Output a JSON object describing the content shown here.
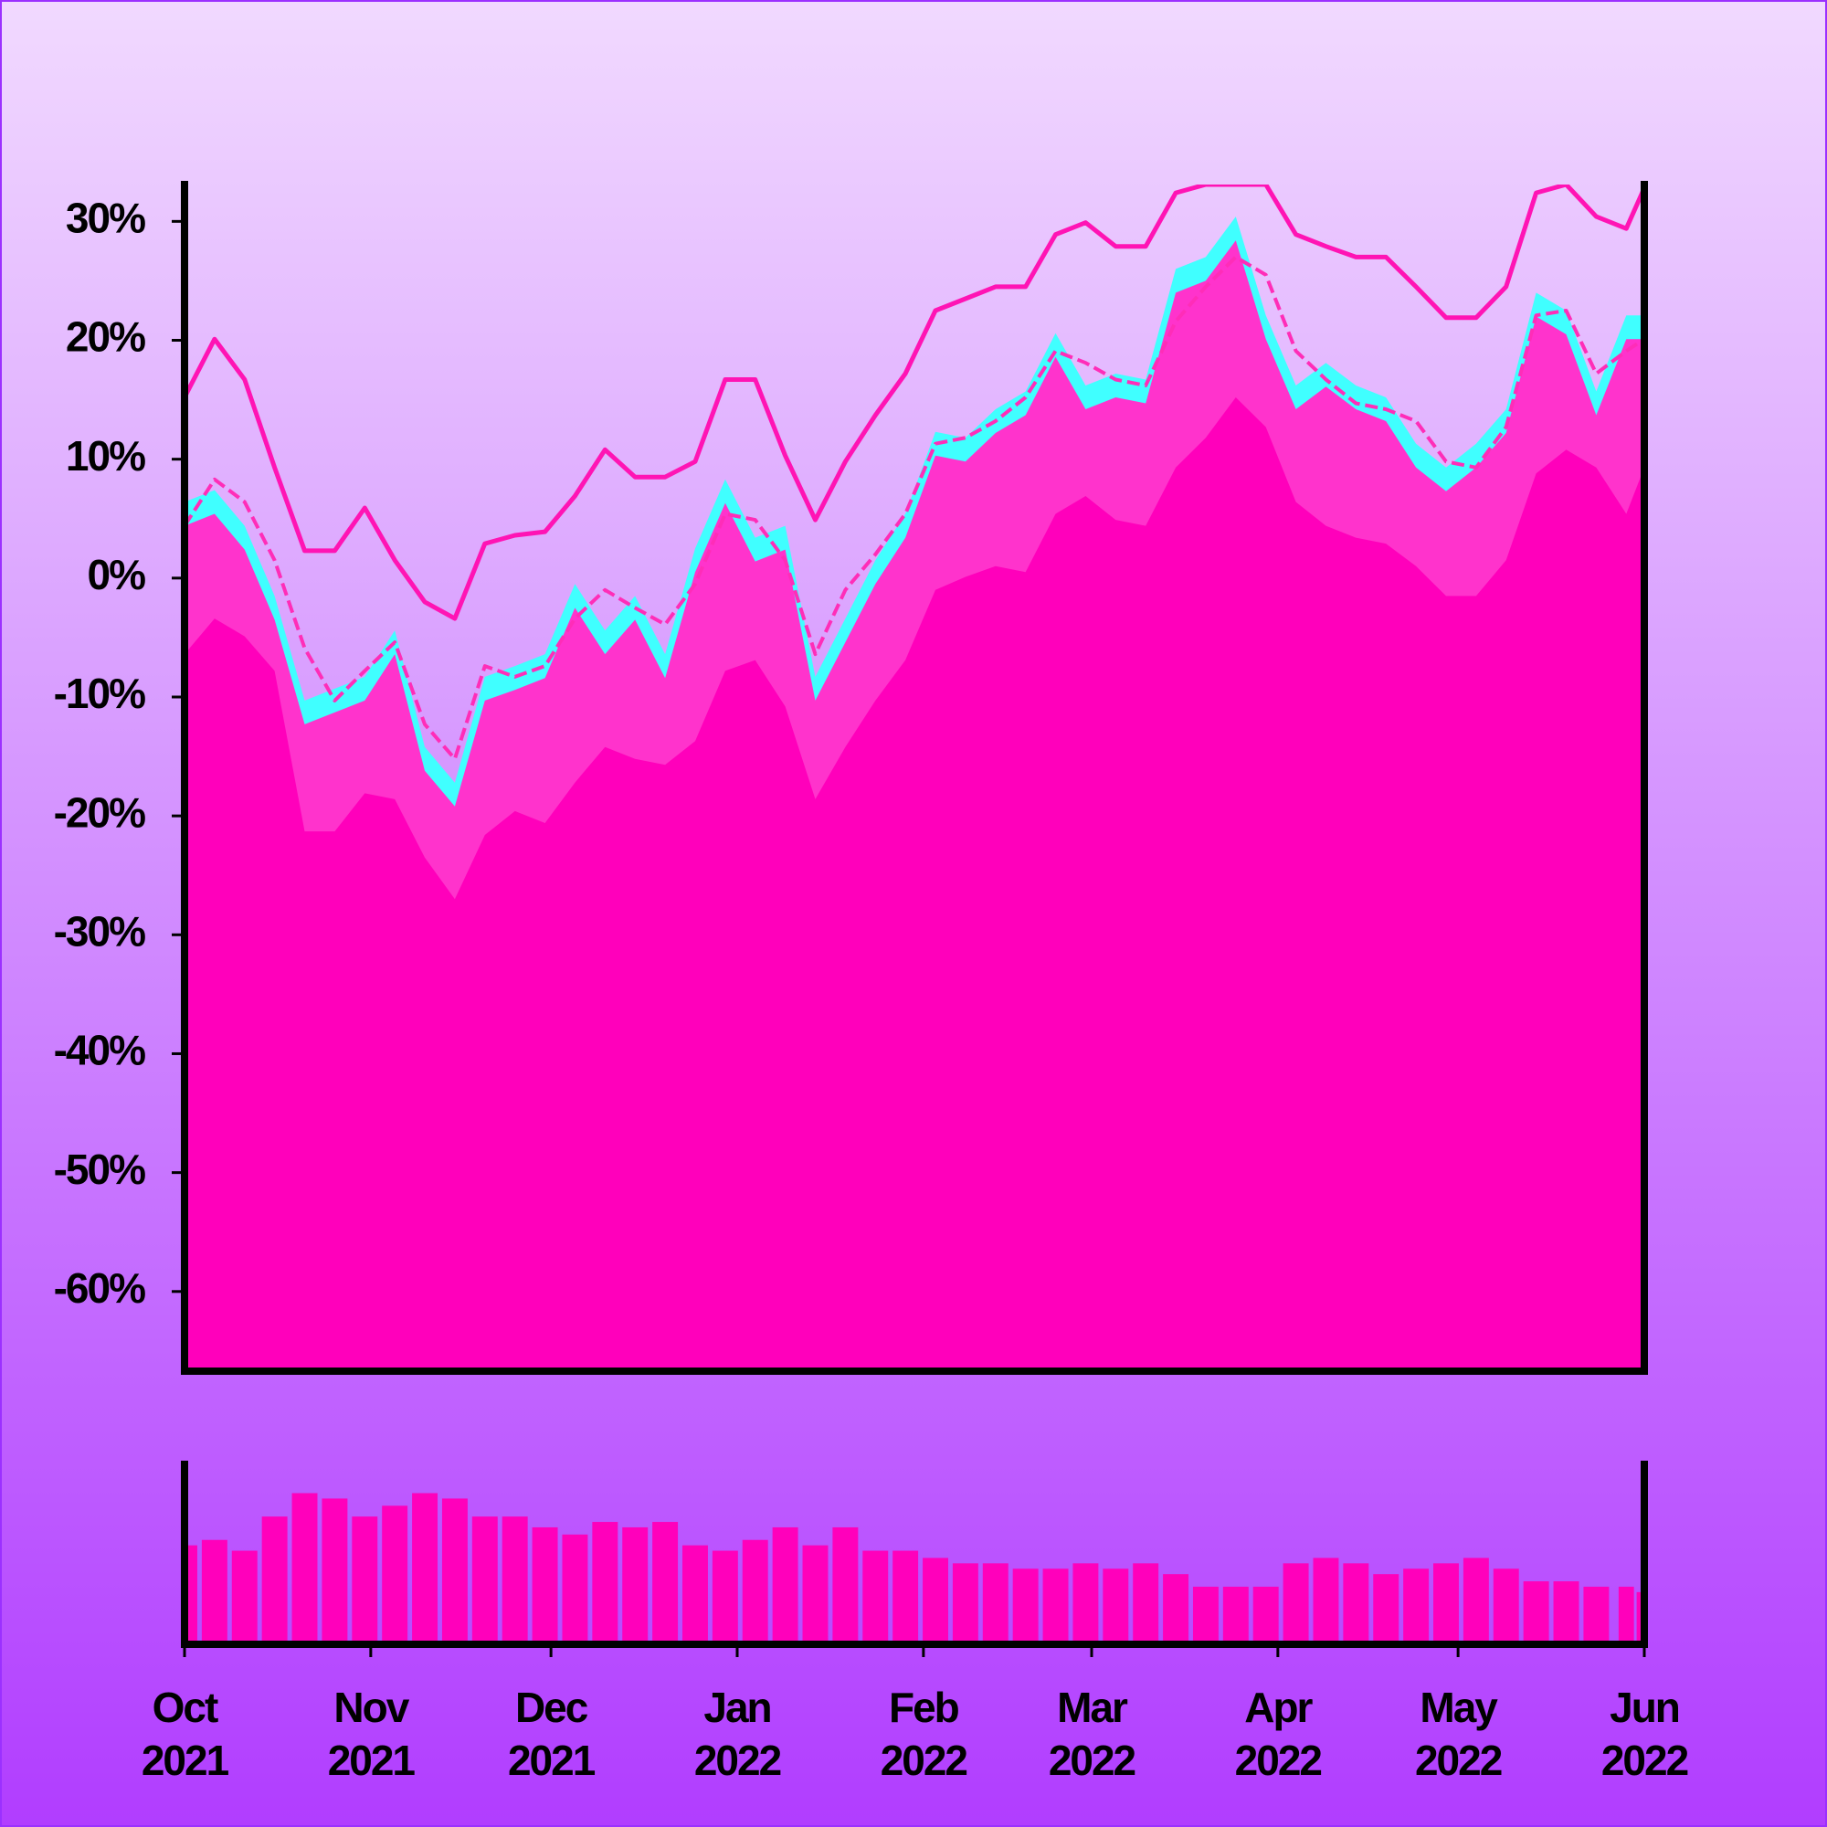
{
  "chart_data": [
    {
      "type": "line",
      "x": [
        0,
        5,
        10,
        15,
        20,
        25,
        30,
        35,
        40,
        45,
        50,
        55,
        60,
        65,
        70,
        75,
        80,
        85,
        90,
        95,
        100,
        105,
        110,
        115,
        120,
        125,
        130,
        135,
        140,
        145,
        150,
        155,
        160,
        165,
        170,
        175,
        180,
        185,
        190,
        195,
        200,
        205,
        210,
        215,
        220,
        225,
        230,
        235,
        240,
        243
      ],
      "xlim": [
        0,
        243
      ],
      "ylim": [
        -66.7,
        33.1
      ],
      "yticks": [
        {
          "value": 30,
          "label": "30%"
        },
        {
          "value": 20,
          "label": "20%"
        },
        {
          "value": 10,
          "label": "10%"
        },
        {
          "value": 0,
          "label": "0%"
        },
        {
          "value": -10,
          "label": "-10%"
        },
        {
          "value": -20,
          "label": "-20%"
        },
        {
          "value": -30,
          "label": "-30%"
        },
        {
          "value": -40,
          "label": "-40%"
        },
        {
          "value": -50,
          "label": "-50%"
        },
        {
          "value": -60,
          "label": "-60%"
        }
      ],
      "series": [
        {
          "color": "#40ffff",
          "fill": true,
          "dashed": false,
          "values": [
            6.4,
            7.4,
            4.4,
            -1.5,
            -10.3,
            -9.3,
            -8.3,
            -4.4,
            -14.2,
            -17.2,
            -8.3,
            -7.4,
            -6.4,
            -0.5,
            -4.4,
            -1.5,
            -6.4,
            2.5,
            8.3,
            3.4,
            4.4,
            -8.3,
            -3.4,
            1.5,
            5.4,
            12.3,
            11.8,
            14.2,
            15.7,
            20.6,
            16.2,
            17.2,
            16.7,
            26.0,
            27.0,
            30.4,
            22.1,
            16.2,
            18.1,
            16.2,
            15.2,
            11.3,
            9.3,
            11.3,
            14.2,
            24.0,
            22.5,
            15.7,
            22.1,
            22.1
          ]
        },
        {
          "color": "#ff33cc",
          "fill": true,
          "dashed": false,
          "values": [
            4.4,
            5.4,
            2.4,
            -3.5,
            -12.3,
            -11.3,
            -10.3,
            -6.4,
            -16.2,
            -19.2,
            -10.3,
            -9.4,
            -8.4,
            -2.5,
            -6.4,
            -3.5,
            -8.4,
            0.5,
            6.3,
            1.4,
            2.4,
            -10.3,
            -5.4,
            -0.5,
            3.4,
            10.3,
            9.8,
            12.2,
            13.7,
            18.6,
            14.2,
            15.2,
            14.7,
            24.0,
            25.0,
            28.4,
            20.1,
            14.2,
            16.1,
            14.2,
            13.2,
            9.3,
            7.3,
            9.3,
            12.2,
            22.0,
            20.5,
            13.7,
            20.1,
            20.1
          ]
        },
        {
          "color": "#ff00bb",
          "fill": true,
          "dashed": false,
          "values": [
            -6.4,
            -3.4,
            -4.9,
            -7.8,
            -21.3,
            -21.3,
            -18.1,
            -18.6,
            -23.5,
            -27.0,
            -21.6,
            -19.6,
            -20.6,
            -17.2,
            -14.2,
            -15.2,
            -15.7,
            -13.7,
            -7.8,
            -6.9,
            -10.8,
            -18.6,
            -14.2,
            -10.3,
            -6.9,
            -1.0,
            0.1,
            1.0,
            0.5,
            5.4,
            6.9,
            4.9,
            4.4,
            9.3,
            11.8,
            15.2,
            12.7,
            6.4,
            4.4,
            3.4,
            2.9,
            1.0,
            -1.5,
            -1.5,
            1.5,
            8.8,
            10.8,
            9.3,
            5.4,
            9.3
          ]
        },
        {
          "color": "#ff14b4",
          "fill": false,
          "dashed": false,
          "values": [
            15.2,
            20.1,
            16.7,
            9.3,
            2.3,
            2.3,
            5.9,
            1.5,
            -2.0,
            -3.4,
            2.9,
            3.6,
            3.9,
            6.9,
            10.8,
            8.5,
            8.5,
            9.8,
            16.7,
            16.7,
            10.3,
            4.9,
            9.8,
            13.7,
            17.2,
            22.5,
            23.5,
            24.5,
            24.5,
            28.9,
            29.9,
            27.9,
            27.9,
            32.4,
            33.1,
            33.1,
            33.1,
            28.9,
            27.9,
            27.0,
            27.0,
            24.5,
            21.9,
            21.9,
            24.5,
            32.4,
            33.1,
            30.4,
            29.4,
            32.8
          ]
        },
        {
          "color": "#ff2db8",
          "fill": false,
          "dashed": true,
          "values": [
            4.4,
            8.3,
            6.4,
            1.5,
            -5.9,
            -10.3,
            -7.8,
            -5.4,
            -12.3,
            -15.2,
            -7.4,
            -8.3,
            -7.4,
            -3.4,
            -1.0,
            -2.5,
            -3.9,
            -0.5,
            5.4,
            4.9,
            1.5,
            -6.4,
            -1.0,
            2.0,
            5.4,
            11.3,
            11.8,
            13.2,
            15.2,
            19.1,
            18.1,
            16.7,
            16.2,
            21.6,
            24.5,
            27.0,
            25.5,
            19.1,
            16.7,
            14.7,
            14.2,
            13.2,
            9.8,
            9.3,
            12.7,
            22.1,
            22.5,
            17.2,
            19.1,
            20.1
          ]
        }
      ]
    },
    {
      "type": "bar",
      "x": [
        0,
        5,
        10,
        15,
        20,
        25,
        30,
        35,
        40,
        45,
        50,
        55,
        60,
        65,
        70,
        75,
        80,
        85,
        90,
        95,
        100,
        105,
        110,
        115,
        120,
        125,
        130,
        135,
        140,
        145,
        150,
        155,
        160,
        165,
        170,
        175,
        180,
        185,
        190,
        195,
        200,
        205,
        210,
        215,
        220,
        225,
        230,
        235,
        240,
        243
      ],
      "values": [
        55,
        58,
        52,
        71,
        84,
        81,
        71,
        77,
        84,
        81,
        71,
        71,
        65,
        61,
        68,
        65,
        68,
        55,
        52,
        58,
        65,
        55,
        65,
        52,
        52,
        48,
        45,
        45,
        42,
        42,
        45,
        42,
        45,
        39,
        32,
        32,
        32,
        45,
        48,
        45,
        39,
        42,
        45,
        48,
        42,
        35,
        35,
        32,
        32,
        29
      ],
      "color": "#ff00bb",
      "xlim": [
        0,
        243
      ],
      "ylim": [
        0,
        100
      ],
      "xticks": [
        {
          "value": 0,
          "label": "Oct\n2021"
        },
        {
          "value": 31,
          "label": "Nov\n2021"
        },
        {
          "value": 61,
          "label": "Dec\n2021"
        },
        {
          "value": 92,
          "label": "Jan\n2022"
        },
        {
          "value": 123,
          "label": "Feb\n2022"
        },
        {
          "value": 151,
          "label": "Mar\n2022"
        },
        {
          "value": 182,
          "label": "Apr\n2022"
        },
        {
          "value": 212,
          "label": "May\n2022"
        },
        {
          "value": 243,
          "label": "Jun\n2022"
        }
      ]
    }
  ]
}
